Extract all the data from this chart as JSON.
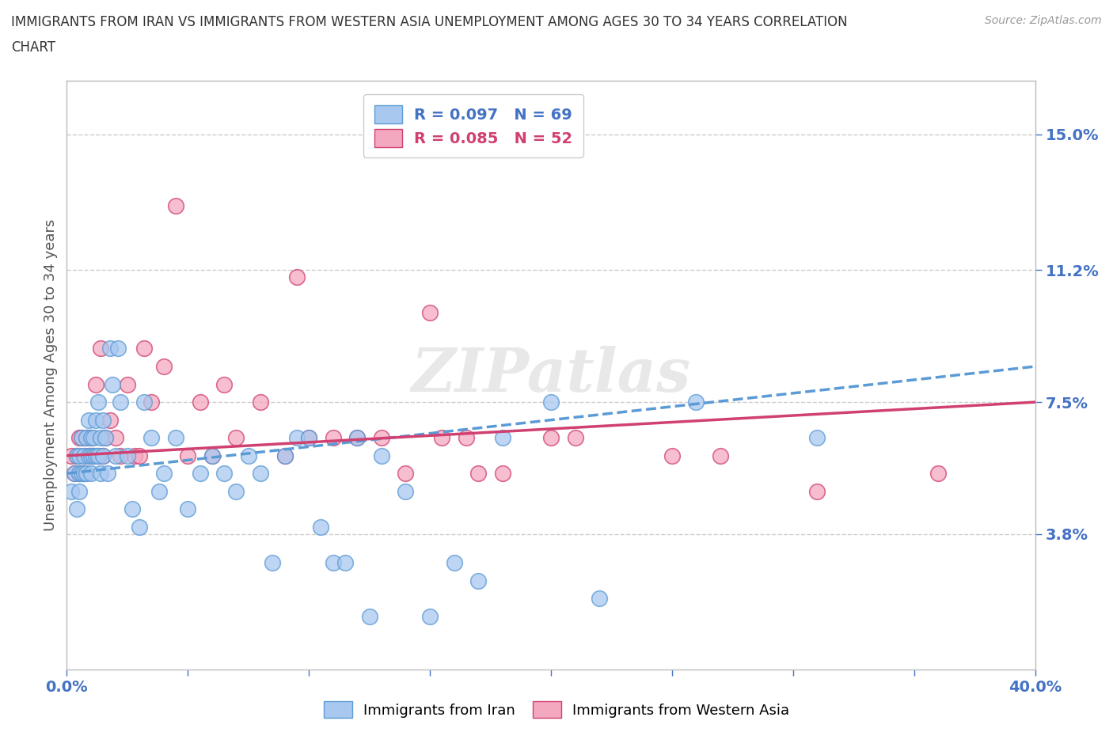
{
  "title_line1": "IMMIGRANTS FROM IRAN VS IMMIGRANTS FROM WESTERN ASIA UNEMPLOYMENT AMONG AGES 30 TO 34 YEARS CORRELATION",
  "title_line2": "CHART",
  "source": "Source: ZipAtlas.com",
  "ylabel": "Unemployment Among Ages 30 to 34 years",
  "xlim": [
    0.0,
    0.4
  ],
  "ylim": [
    0.0,
    0.165
  ],
  "yticks": [
    0.038,
    0.075,
    0.112,
    0.15
  ],
  "ytick_labels": [
    "3.8%",
    "7.5%",
    "11.2%",
    "15.0%"
  ],
  "xticks": [
    0.0,
    0.05,
    0.1,
    0.15,
    0.2,
    0.25,
    0.3,
    0.35,
    0.4
  ],
  "xtick_labels": [
    "0.0%",
    "",
    "",
    "",
    "",
    "",
    "",
    "",
    "40.0%"
  ],
  "iran_color": "#A8C8F0",
  "western_asia_color": "#F4A8C0",
  "iran_edge_color": "#5B9BD5",
  "western_asia_edge_color": "#D04070",
  "trend_iran_color": "#5B9BD5",
  "trend_wa_color": "#D04070",
  "R_iran": 0.097,
  "N_iran": 69,
  "R_wa": 0.085,
  "N_wa": 52,
  "watermark": "ZIPatlas",
  "iran_x": [
    0.002,
    0.003,
    0.004,
    0.004,
    0.005,
    0.005,
    0.005,
    0.006,
    0.006,
    0.007,
    0.007,
    0.008,
    0.008,
    0.009,
    0.009,
    0.01,
    0.01,
    0.01,
    0.011,
    0.011,
    0.012,
    0.012,
    0.013,
    0.013,
    0.014,
    0.014,
    0.015,
    0.015,
    0.016,
    0.017,
    0.018,
    0.019,
    0.02,
    0.021,
    0.022,
    0.025,
    0.027,
    0.03,
    0.032,
    0.035,
    0.038,
    0.04,
    0.045,
    0.05,
    0.055,
    0.06,
    0.065,
    0.07,
    0.075,
    0.08,
    0.085,
    0.09,
    0.095,
    0.1,
    0.105,
    0.11,
    0.115,
    0.12,
    0.125,
    0.13,
    0.14,
    0.15,
    0.16,
    0.17,
    0.18,
    0.2,
    0.22,
    0.26,
    0.31
  ],
  "iran_y": [
    0.05,
    0.055,
    0.06,
    0.045,
    0.05,
    0.06,
    0.055,
    0.055,
    0.065,
    0.055,
    0.06,
    0.055,
    0.065,
    0.06,
    0.07,
    0.055,
    0.06,
    0.065,
    0.065,
    0.06,
    0.06,
    0.07,
    0.06,
    0.075,
    0.065,
    0.055,
    0.06,
    0.07,
    0.065,
    0.055,
    0.09,
    0.08,
    0.06,
    0.09,
    0.075,
    0.06,
    0.045,
    0.04,
    0.075,
    0.065,
    0.05,
    0.055,
    0.065,
    0.045,
    0.055,
    0.06,
    0.055,
    0.05,
    0.06,
    0.055,
    0.03,
    0.06,
    0.065,
    0.065,
    0.04,
    0.03,
    0.03,
    0.065,
    0.015,
    0.06,
    0.05,
    0.015,
    0.03,
    0.025,
    0.065,
    0.075,
    0.02,
    0.075,
    0.065
  ],
  "wa_x": [
    0.002,
    0.003,
    0.004,
    0.005,
    0.005,
    0.006,
    0.007,
    0.007,
    0.008,
    0.009,
    0.01,
    0.01,
    0.011,
    0.012,
    0.013,
    0.014,
    0.015,
    0.016,
    0.018,
    0.02,
    0.022,
    0.025,
    0.028,
    0.03,
    0.032,
    0.035,
    0.04,
    0.045,
    0.05,
    0.055,
    0.06,
    0.065,
    0.07,
    0.08,
    0.09,
    0.095,
    0.1,
    0.11,
    0.12,
    0.13,
    0.14,
    0.15,
    0.155,
    0.165,
    0.17,
    0.18,
    0.2,
    0.21,
    0.25,
    0.27,
    0.31,
    0.36
  ],
  "wa_y": [
    0.06,
    0.055,
    0.06,
    0.065,
    0.055,
    0.065,
    0.06,
    0.055,
    0.065,
    0.06,
    0.065,
    0.06,
    0.06,
    0.08,
    0.06,
    0.09,
    0.06,
    0.065,
    0.07,
    0.065,
    0.06,
    0.08,
    0.06,
    0.06,
    0.09,
    0.075,
    0.085,
    0.13,
    0.06,
    0.075,
    0.06,
    0.08,
    0.065,
    0.075,
    0.06,
    0.11,
    0.065,
    0.065,
    0.065,
    0.065,
    0.055,
    0.1,
    0.065,
    0.065,
    0.055,
    0.055,
    0.065,
    0.065,
    0.06,
    0.06,
    0.05,
    0.055
  ]
}
